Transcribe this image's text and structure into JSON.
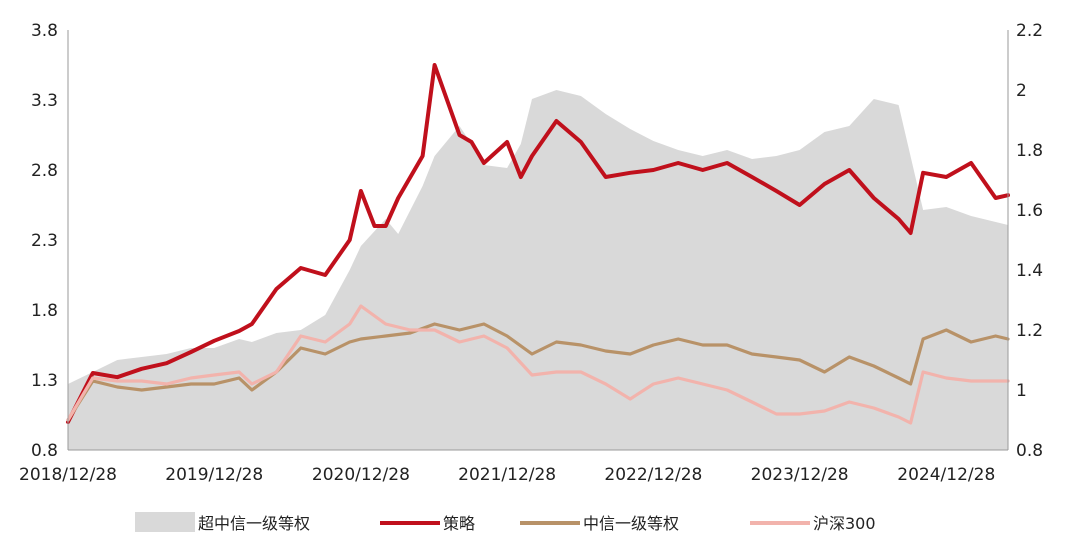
{
  "chart_data": {
    "type": "area",
    "x_tick_labels": [
      "2018/12/28",
      "2019/12/28",
      "2020/12/28",
      "2021/12/28",
      "2022/12/28",
      "2023/12/28",
      "2024/12/28"
    ],
    "x_range": [
      "2018/12/28",
      "2025/05/31"
    ],
    "y_left": {
      "min": 0.8,
      "max": 3.8,
      "ticks": [
        "0.8",
        "1.3",
        "1.8",
        "2.3",
        "2.8",
        "3.3",
        "3.8"
      ]
    },
    "y_right": {
      "min": 0.8,
      "max": 2.2,
      "ticks": [
        "0.8",
        "1",
        "1.2",
        "1.4",
        "1.6",
        "1.8",
        "2",
        "2.2"
      ]
    },
    "grid": false,
    "legend_position": "bottom",
    "colors": {
      "excess": "#d9d9d9",
      "strategy": "#c0101c",
      "citic": "#b89268",
      "hs300": "#f2b3ac"
    },
    "series": [
      {
        "name": "超中信一级等权",
        "type": "area",
        "axis": "right",
        "color": "#d9d9d9",
        "x": [
          "2018/12/28",
          "2019/02/28",
          "2019/04/30",
          "2019/06/30",
          "2019/08/31",
          "2019/10/31",
          "2019/12/28",
          "2020/02/28",
          "2020/03/31",
          "2020/05/31",
          "2020/07/31",
          "2020/09/30",
          "2020/11/30",
          "2020/12/28",
          "2021/02/28",
          "2021/03/31",
          "2021/05/31",
          "2021/06/30",
          "2021/08/31",
          "2021/09/30",
          "2021/10/31",
          "2021/12/28",
          "2022/01/31",
          "2022/02/28",
          "2022/04/30",
          "2022/06/30",
          "2022/08/31",
          "2022/10/31",
          "2022/12/28",
          "2023/02/28",
          "2023/04/30",
          "2023/06/30",
          "2023/08/31",
          "2023/10/31",
          "2023/12/28",
          "2024/02/28",
          "2024/04/30",
          "2024/06/30",
          "2024/08/31",
          "2024/10/31",
          "2024/12/28",
          "2025/02/28",
          "2025/05/31"
        ],
        "values": [
          1.02,
          1.06,
          1.1,
          1.11,
          1.12,
          1.14,
          1.14,
          1.17,
          1.16,
          1.19,
          1.2,
          1.25,
          1.4,
          1.48,
          1.57,
          1.52,
          1.68,
          1.78,
          1.88,
          1.82,
          1.75,
          1.74,
          1.82,
          1.97,
          2.0,
          1.98,
          1.92,
          1.87,
          1.83,
          1.8,
          1.78,
          1.8,
          1.77,
          1.78,
          1.8,
          1.86,
          1.88,
          1.97,
          1.95,
          1.6,
          1.61,
          1.58,
          1.55
        ]
      },
      {
        "name": "策略",
        "type": "line",
        "axis": "left",
        "color": "#c0101c",
        "x": [
          "2018/12/28",
          "2019/02/28",
          "2019/04/30",
          "2019/06/30",
          "2019/08/31",
          "2019/10/31",
          "2019/12/28",
          "2020/02/28",
          "2020/03/31",
          "2020/05/31",
          "2020/07/31",
          "2020/09/30",
          "2020/11/30",
          "2020/12/28",
          "2021/01/31",
          "2021/02/28",
          "2021/03/31",
          "2021/05/31",
          "2021/06/30",
          "2021/08/31",
          "2021/09/30",
          "2021/10/31",
          "2021/12/28",
          "2022/01/31",
          "2022/02/28",
          "2022/04/30",
          "2022/06/30",
          "2022/08/31",
          "2022/10/31",
          "2022/12/28",
          "2023/02/28",
          "2023/04/30",
          "2023/06/30",
          "2023/08/31",
          "2023/10/31",
          "2023/12/28",
          "2024/02/28",
          "2024/04/30",
          "2024/06/30",
          "2024/08/31",
          "2024/09/30",
          "2024/10/31",
          "2024/12/28",
          "2025/02/28",
          "2025/04/30",
          "2025/05/31"
        ],
        "values": [
          1.0,
          1.35,
          1.32,
          1.38,
          1.42,
          1.5,
          1.58,
          1.65,
          1.7,
          1.95,
          2.1,
          2.05,
          2.3,
          2.65,
          2.4,
          2.4,
          2.6,
          2.9,
          3.55,
          3.05,
          3.0,
          2.85,
          3.0,
          2.75,
          2.9,
          3.15,
          3.0,
          2.75,
          2.78,
          2.8,
          2.85,
          2.8,
          2.85,
          2.75,
          2.65,
          2.55,
          2.7,
          2.8,
          2.6,
          2.45,
          2.35,
          2.78,
          2.75,
          2.85,
          2.6,
          2.62
        ]
      },
      {
        "name": "中信一级等权",
        "type": "line",
        "axis": "right",
        "color": "#b89268",
        "x": [
          "2018/12/28",
          "2019/02/28",
          "2019/04/30",
          "2019/06/30",
          "2019/08/31",
          "2019/10/31",
          "2019/12/28",
          "2020/02/28",
          "2020/03/31",
          "2020/05/31",
          "2020/07/31",
          "2020/09/30",
          "2020/11/30",
          "2020/12/28",
          "2021/02/28",
          "2021/04/30",
          "2021/06/30",
          "2021/08/31",
          "2021/10/31",
          "2021/12/28",
          "2022/02/28",
          "2022/04/30",
          "2022/06/30",
          "2022/08/31",
          "2022/10/31",
          "2022/12/28",
          "2023/02/28",
          "2023/04/30",
          "2023/06/30",
          "2023/08/31",
          "2023/10/31",
          "2023/12/28",
          "2024/02/28",
          "2024/04/30",
          "2024/06/30",
          "2024/08/31",
          "2024/09/30",
          "2024/10/31",
          "2024/12/28",
          "2025/02/28",
          "2025/04/30",
          "2025/05/31"
        ],
        "values": [
          0.9,
          1.03,
          1.01,
          1.0,
          1.01,
          1.02,
          1.02,
          1.04,
          1.0,
          1.06,
          1.14,
          1.12,
          1.16,
          1.17,
          1.18,
          1.19,
          1.22,
          1.2,
          1.22,
          1.18,
          1.12,
          1.16,
          1.15,
          1.13,
          1.12,
          1.15,
          1.17,
          1.15,
          1.15,
          1.12,
          1.11,
          1.1,
          1.06,
          1.11,
          1.08,
          1.04,
          1.02,
          1.17,
          1.2,
          1.16,
          1.18,
          1.17
        ]
      },
      {
        "name": "沪深300",
        "type": "line",
        "axis": "right",
        "color": "#f2b3ac",
        "x": [
          "2018/12/28",
          "2019/02/28",
          "2019/04/30",
          "2019/06/30",
          "2019/08/31",
          "2019/10/31",
          "2019/12/28",
          "2020/02/28",
          "2020/03/31",
          "2020/05/31",
          "2020/07/31",
          "2020/09/30",
          "2020/11/30",
          "2020/12/28",
          "2021/02/28",
          "2021/04/30",
          "2021/06/30",
          "2021/08/31",
          "2021/10/31",
          "2021/12/28",
          "2022/02/28",
          "2022/04/30",
          "2022/06/30",
          "2022/08/31",
          "2022/10/31",
          "2022/12/28",
          "2023/02/28",
          "2023/04/30",
          "2023/06/30",
          "2023/08/31",
          "2023/10/31",
          "2023/12/28",
          "2024/02/28",
          "2024/04/30",
          "2024/06/30",
          "2024/08/31",
          "2024/09/30",
          "2024/10/31",
          "2024/12/28",
          "2025/02/28",
          "2025/04/30",
          "2025/05/31"
        ],
        "values": [
          0.9,
          1.04,
          1.03,
          1.03,
          1.02,
          1.04,
          1.05,
          1.06,
          1.02,
          1.06,
          1.18,
          1.16,
          1.22,
          1.28,
          1.22,
          1.2,
          1.2,
          1.16,
          1.18,
          1.14,
          1.05,
          1.06,
          1.06,
          1.02,
          0.97,
          1.02,
          1.04,
          1.02,
          1.0,
          0.96,
          0.92,
          0.92,
          0.93,
          0.96,
          0.94,
          0.91,
          0.89,
          1.06,
          1.04,
          1.03,
          1.03,
          1.03
        ]
      }
    ]
  }
}
